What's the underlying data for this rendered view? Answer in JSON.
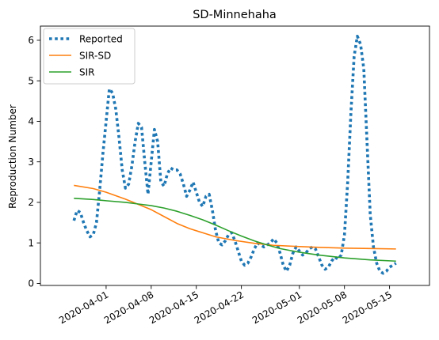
{
  "chart_data": {
    "type": "line",
    "title": "SD-Minnehaha",
    "xlabel": "",
    "ylabel": "Reproduction Number",
    "xlim_days": [
      -5.2,
      45.2
    ],
    "ylim": [
      -0.05,
      6.35
    ],
    "x_origin_date": "2020-03-27",
    "x_ticks": [
      {
        "day": 5,
        "label": "2020-04-01"
      },
      {
        "day": 12,
        "label": "2020-04-08"
      },
      {
        "day": 19,
        "label": "2020-04-15"
      },
      {
        "day": 26,
        "label": "2020-04-22"
      },
      {
        "day": 35,
        "label": "2020-05-01"
      },
      {
        "day": 42,
        "label": "2020-05-08"
      },
      {
        "day": 49,
        "label": "2020-05-15"
      }
    ],
    "y_ticks": [
      0,
      1,
      2,
      3,
      4,
      5,
      6
    ],
    "legend_position": "top-left",
    "series": [
      {
        "name": "Reported",
        "color": "#1f77b4",
        "style": "dotted",
        "points": [
          [
            0,
            1.55
          ],
          [
            0.5,
            1.8
          ],
          [
            1,
            1.75
          ],
          [
            1.5,
            1.5
          ],
          [
            2,
            1.3
          ],
          [
            2.5,
            1.15
          ],
          [
            3,
            1.2
          ],
          [
            3.5,
            1.5
          ],
          [
            4,
            2.3
          ],
          [
            4.5,
            3.2
          ],
          [
            5,
            4.0
          ],
          [
            5.5,
            4.8
          ],
          [
            6,
            4.7
          ],
          [
            6.5,
            4.3
          ],
          [
            7,
            3.6
          ],
          [
            7.5,
            2.8
          ],
          [
            8,
            2.35
          ],
          [
            8.5,
            2.45
          ],
          [
            9,
            2.9
          ],
          [
            9.5,
            3.5
          ],
          [
            10,
            3.95
          ],
          [
            10.5,
            3.85
          ],
          [
            11,
            3.0
          ],
          [
            11.5,
            2.2
          ],
          [
            12,
            3.0
          ],
          [
            12.5,
            3.8
          ],
          [
            13,
            3.5
          ],
          [
            13.5,
            2.5
          ],
          [
            14,
            2.4
          ],
          [
            14.5,
            2.7
          ],
          [
            15,
            2.85
          ],
          [
            15.5,
            2.8
          ],
          [
            16,
            2.8
          ],
          [
            16.5,
            2.7
          ],
          [
            17,
            2.45
          ],
          [
            17.5,
            2.15
          ],
          [
            18,
            2.3
          ],
          [
            18.5,
            2.5
          ],
          [
            19,
            2.25
          ],
          [
            19.5,
            2.0
          ],
          [
            20,
            1.9
          ],
          [
            20.5,
            2.15
          ],
          [
            21,
            2.2
          ],
          [
            21.5,
            1.8
          ],
          [
            22,
            1.3
          ],
          [
            22.5,
            1.0
          ],
          [
            23,
            0.95
          ],
          [
            23.5,
            1.05
          ],
          [
            24,
            1.2
          ],
          [
            24.5,
            1.25
          ],
          [
            25,
            1.05
          ],
          [
            25.5,
            0.8
          ],
          [
            26,
            0.55
          ],
          [
            26.5,
            0.45
          ],
          [
            27,
            0.5
          ],
          [
            27.5,
            0.65
          ],
          [
            28,
            0.85
          ],
          [
            28.5,
            1.0
          ],
          [
            29,
            0.95
          ],
          [
            29.5,
            0.9
          ],
          [
            30,
            0.95
          ],
          [
            30.5,
            1.0
          ],
          [
            31,
            1.1
          ],
          [
            31.5,
            1.0
          ],
          [
            32,
            0.75
          ],
          [
            32.5,
            0.45
          ],
          [
            33,
            0.3
          ],
          [
            33.5,
            0.45
          ],
          [
            34,
            0.75
          ],
          [
            34.5,
            0.9
          ],
          [
            35,
            0.8
          ],
          [
            35.5,
            0.7
          ],
          [
            36,
            0.75
          ],
          [
            36.5,
            0.85
          ],
          [
            37,
            0.9
          ],
          [
            37.5,
            0.85
          ],
          [
            38,
            0.65
          ],
          [
            38.5,
            0.45
          ],
          [
            39,
            0.35
          ],
          [
            39.5,
            0.4
          ],
          [
            40,
            0.55
          ],
          [
            40.5,
            0.65
          ],
          [
            41,
            0.6
          ],
          [
            41.5,
            0.7
          ],
          [
            42,
            1.2
          ],
          [
            42.5,
            2.5
          ],
          [
            43,
            4.2
          ],
          [
            43.5,
            5.6
          ],
          [
            44,
            6.1
          ],
          [
            44.5,
            5.9
          ],
          [
            45,
            5.3
          ],
          [
            45.5,
            3.5
          ],
          [
            46,
            1.7
          ],
          [
            46.5,
            0.9
          ],
          [
            47,
            0.5
          ],
          [
            47.5,
            0.3
          ],
          [
            48,
            0.25
          ],
          [
            48.5,
            0.3
          ],
          [
            49,
            0.4
          ],
          [
            49.5,
            0.45
          ],
          [
            50,
            0.5
          ]
        ]
      },
      {
        "name": "SIR-SD",
        "color": "#ff7f0e",
        "style": "solid",
        "points": [
          [
            0,
            2.42
          ],
          [
            3,
            2.34
          ],
          [
            5,
            2.25
          ],
          [
            8,
            2.08
          ],
          [
            10,
            1.95
          ],
          [
            12,
            1.82
          ],
          [
            14,
            1.65
          ],
          [
            16,
            1.48
          ],
          [
            18,
            1.35
          ],
          [
            20,
            1.25
          ],
          [
            22,
            1.15
          ],
          [
            25,
            1.06
          ],
          [
            28,
            0.99
          ],
          [
            31,
            0.94
          ],
          [
            35,
            0.91
          ],
          [
            38,
            0.89
          ],
          [
            42,
            0.87
          ],
          [
            46,
            0.86
          ],
          [
            50,
            0.85
          ]
        ]
      },
      {
        "name": "SIR",
        "color": "#2ca02c",
        "style": "solid",
        "points": [
          [
            0,
            2.1
          ],
          [
            3,
            2.07
          ],
          [
            5,
            2.04
          ],
          [
            8,
            2.0
          ],
          [
            10,
            1.96
          ],
          [
            12,
            1.92
          ],
          [
            14,
            1.86
          ],
          [
            16,
            1.78
          ],
          [
            18,
            1.68
          ],
          [
            20,
            1.57
          ],
          [
            22,
            1.44
          ],
          [
            24,
            1.3
          ],
          [
            26,
            1.17
          ],
          [
            28,
            1.05
          ],
          [
            30,
            0.95
          ],
          [
            32,
            0.86
          ],
          [
            35,
            0.77
          ],
          [
            38,
            0.7
          ],
          [
            42,
            0.63
          ],
          [
            46,
            0.58
          ],
          [
            50,
            0.55
          ]
        ]
      }
    ]
  }
}
